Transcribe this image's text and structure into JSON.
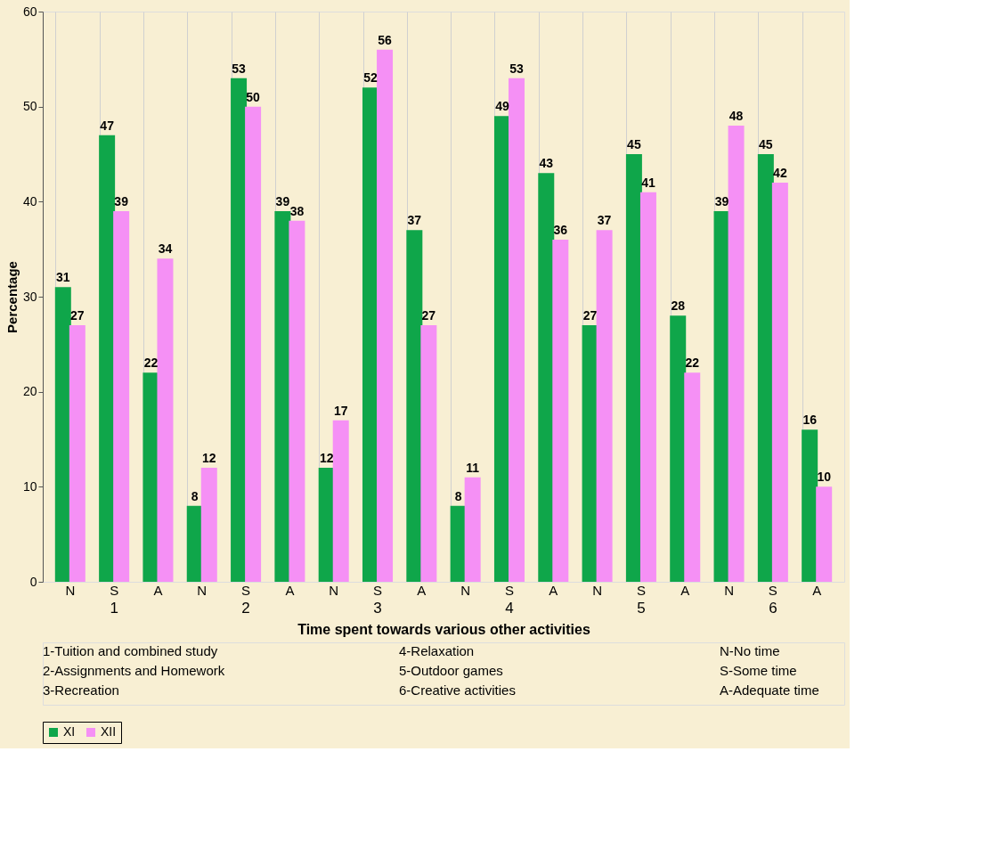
{
  "chart_data": {
    "type": "bar",
    "ylabel": "Percentage",
    "xlabel": "Time spent towards various  other activities",
    "categories": [
      "N",
      "S",
      "A",
      "N",
      "S",
      "A",
      "N",
      "S",
      "A",
      "N",
      "S",
      "A",
      "N",
      "S",
      "A",
      "N",
      "S",
      "A"
    ],
    "series": [
      {
        "name": "XI",
        "color": "#0fa64a",
        "values": [
          31,
          47,
          22,
          8,
          53,
          39,
          12,
          52,
          37,
          8,
          49,
          43,
          27,
          45,
          28,
          39,
          45,
          16
        ]
      },
      {
        "name": "XII",
        "color": "#f590f5",
        "values": [
          27,
          39,
          34,
          12,
          50,
          38,
          17,
          56,
          27,
          11,
          53,
          36,
          37,
          41,
          22,
          48,
          42,
          10
        ]
      }
    ],
    "ylim": [
      0,
      60
    ],
    "yticks": [
      0,
      10,
      20,
      30,
      40,
      50,
      60
    ],
    "grid": "x",
    "legend": "bottom",
    "data_labels": true,
    "annotations": [
      "1",
      "2",
      "3",
      "4",
      "5",
      "6",
      "1-Tuition and combined study",
      "2-Assignments and Homework",
      "3-Recreation",
      "4-Relaxation",
      "5-Outdoor games",
      "6-Creative activities",
      "N-No time",
      "S-Some time",
      "A-Adequate time"
    ]
  }
}
